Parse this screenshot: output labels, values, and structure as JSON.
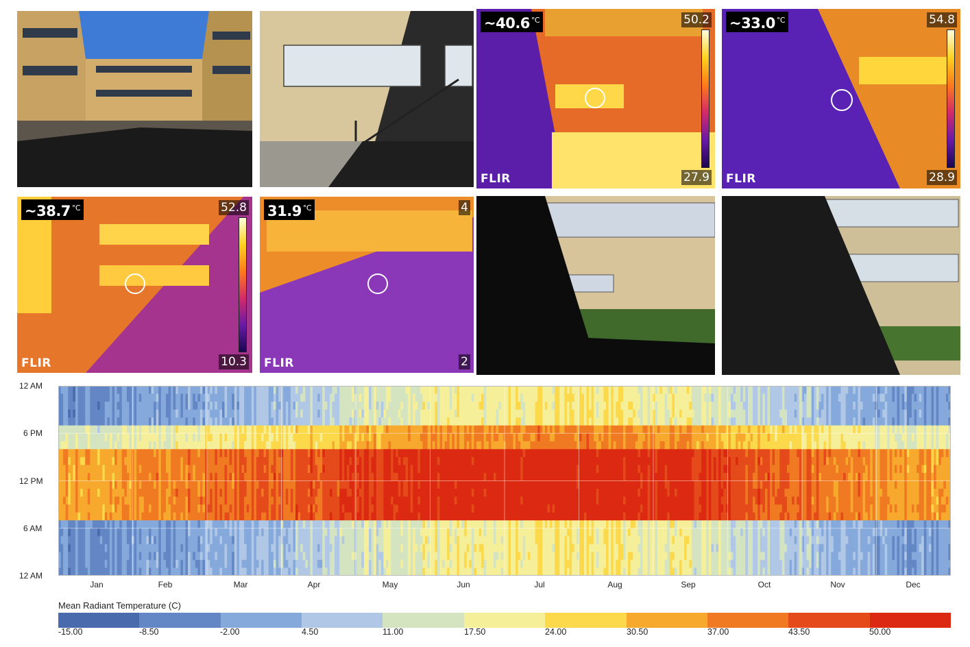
{
  "photos": [
    {
      "kind": "visible",
      "scene": "courtyard"
    },
    {
      "kind": "visible",
      "scene": "stairs"
    },
    {
      "kind": "thermal",
      "spot": "~40.6",
      "unit": "°C",
      "max": "50.2",
      "min": "27.9",
      "brand": "FLIR"
    },
    {
      "kind": "thermal",
      "spot": "~33.0",
      "unit": "°C",
      "max": "54.8",
      "min": "28.9",
      "brand": "FLIR"
    },
    {
      "kind": "thermal",
      "spot": "~38.7",
      "unit": "°C",
      "max": "52.8",
      "min": "10.3",
      "brand": "FLIR"
    },
    {
      "kind": "thermal",
      "spot": "31.9",
      "unit": "°C",
      "max": "4",
      "min": "2",
      "brand": "FLIR"
    },
    {
      "kind": "visible",
      "scene": "shaded-lawn"
    },
    {
      "kind": "visible",
      "scene": "shaded-lawn-2"
    }
  ],
  "chart_data": {
    "type": "heatmap",
    "title": "",
    "xlabel": "",
    "ylabel": "",
    "x_ticks": [
      "Jan",
      "Feb",
      "Mar",
      "Apr",
      "May",
      "Jun",
      "Jul",
      "Aug",
      "Sep",
      "Oct",
      "Nov",
      "Dec"
    ],
    "y_ticks": [
      "12 AM",
      "6 PM",
      "12 PM",
      "6 AM",
      "12 AM"
    ],
    "x_range": [
      "Jan 1",
      "Dec 31"
    ],
    "y_range_hours": [
      0,
      24
    ],
    "grid": true,
    "colorbar": {
      "title": "Mean Radiant Temperature (C)",
      "ticks": [
        "-15.00",
        "-8.50",
        "-2.00",
        "4.50",
        "11.00",
        "17.50",
        "24.00",
        "30.50",
        "37.00",
        "43.50",
        "50.00"
      ],
      "colors": [
        "#4a6aae",
        "#6287c4",
        "#86a9dc",
        "#b0c8e6",
        "#d4e4c0",
        "#f6ef9a",
        "#fbd94a",
        "#f7a92e",
        "#f07a22",
        "#e44a1a",
        "#dc2a12"
      ]
    },
    "daytime_peak_by_month": [
      30,
      34,
      38,
      41,
      46,
      48,
      49,
      48,
      46,
      40,
      35,
      31
    ],
    "night_value_by_month": [
      -4,
      -2,
      2,
      8,
      14,
      18,
      20,
      19,
      15,
      9,
      3,
      -2
    ]
  }
}
